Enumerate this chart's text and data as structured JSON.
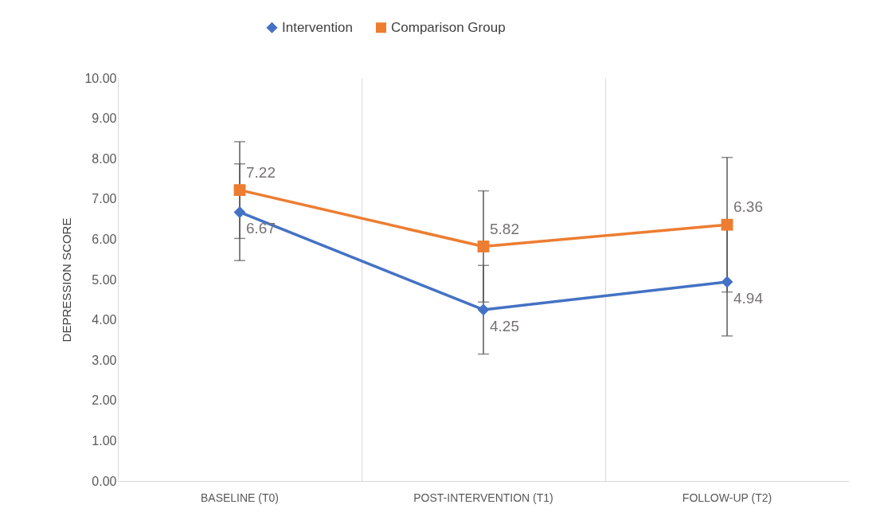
{
  "chart_data": {
    "type": "line",
    "ylabel": "DEPRESSION SCORE",
    "categories": [
      "BASELINE (T0)",
      "POST-INTERVENTION (T1)",
      "FOLLOW-UP (T2)"
    ],
    "series": [
      {
        "name": "Intervention",
        "color": "#4472c4",
        "marker": "diamond",
        "values": [
          6.67,
          4.25,
          4.94
        ],
        "errors": [
          1.2,
          1.1,
          1.34
        ]
      },
      {
        "name": "Comparison Group",
        "color": "#ed7d31",
        "marker": "square",
        "values": [
          7.22,
          5.82,
          6.36
        ],
        "errors": [
          1.2,
          1.38,
          1.67
        ]
      }
    ],
    "ylim": [
      0,
      10
    ],
    "yticks": [
      {
        "value": 0,
        "label": "0.00"
      },
      {
        "value": 1,
        "label": "1.00"
      },
      {
        "value": 2,
        "label": "2.00"
      },
      {
        "value": 3,
        "label": "3.00"
      },
      {
        "value": 4,
        "label": "4.00"
      },
      {
        "value": 5,
        "label": "5.00"
      },
      {
        "value": 6,
        "label": "6.00"
      },
      {
        "value": 7,
        "label": "7.00"
      },
      {
        "value": 8,
        "label": "8.00"
      },
      {
        "value": 9,
        "label": "9.00"
      },
      {
        "value": 10,
        "label": "10.00"
      }
    ],
    "grid": "x",
    "legend": "top",
    "line_style": "solid",
    "data_labels": true
  }
}
